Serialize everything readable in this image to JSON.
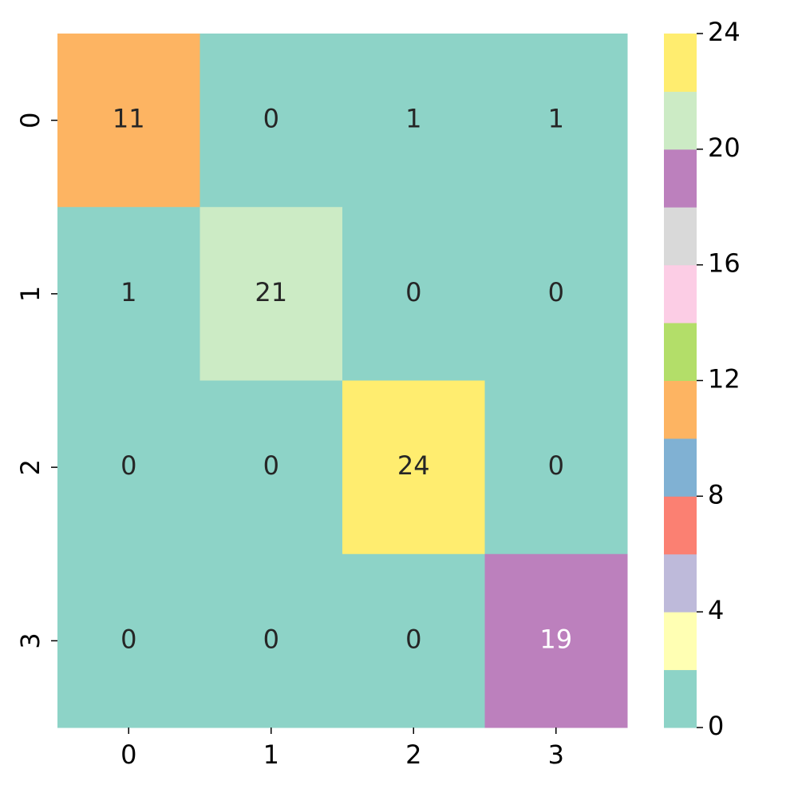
{
  "chart_data": {
    "type": "heatmap",
    "x_categories": [
      "0",
      "1",
      "2",
      "3"
    ],
    "y_categories": [
      "0",
      "1",
      "2",
      "3"
    ],
    "values": [
      [
        11,
        0,
        1,
        1
      ],
      [
        1,
        21,
        0,
        0
      ],
      [
        0,
        0,
        24,
        0
      ],
      [
        0,
        0,
        0,
        19
      ]
    ],
    "colormap": [
      "#8dd3c7",
      "#ffffb3",
      "#bebada",
      "#fb8072",
      "#80b1d3",
      "#fdb462",
      "#b3de69",
      "#fccde5",
      "#d9d9d9",
      "#bc80bd",
      "#ccebc5",
      "#ffed6f"
    ],
    "zlim": [
      0,
      24
    ],
    "zticks": [
      0,
      4,
      8,
      12,
      16,
      20,
      24
    ]
  }
}
